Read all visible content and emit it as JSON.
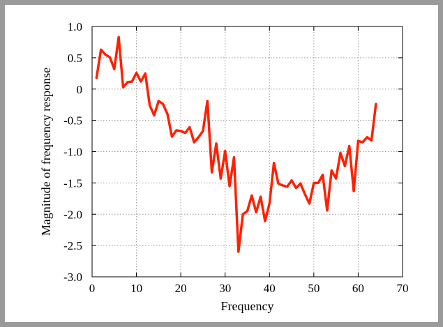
{
  "chart_data": {
    "type": "line",
    "title": "",
    "xlabel": "Frequency",
    "ylabel": "Magnitude of frequency response",
    "xlim": [
      0,
      70
    ],
    "ylim": [
      -3.0,
      1.0
    ],
    "xticks": [
      0,
      10,
      20,
      30,
      40,
      50,
      60,
      70
    ],
    "xtick_labels": [
      "0",
      "10",
      "20",
      "30",
      "40",
      "50",
      "60",
      "70"
    ],
    "yticks": [
      1.0,
      0.5,
      0,
      -0.5,
      -1.0,
      -1.5,
      -2.0,
      -2.5,
      -3.0
    ],
    "ytick_labels": [
      "1.0",
      "0.5",
      "0",
      "-0.5",
      "-1.0",
      "-1.5",
      "-2.0",
      "-2.5",
      "-3.0"
    ],
    "grid": true,
    "legend": "none",
    "line_color": "#ff2000",
    "series": [
      {
        "x": [
          1,
          2,
          3,
          4,
          5,
          6,
          7,
          8,
          9,
          10,
          11,
          12,
          13,
          14,
          15,
          16,
          17,
          18,
          19,
          20,
          21,
          22,
          23,
          24,
          25,
          26,
          27,
          28,
          29,
          30,
          31,
          32,
          33,
          34,
          35,
          36,
          37,
          38,
          39,
          40,
          41,
          42,
          43,
          44,
          45,
          46,
          47,
          48,
          49,
          50,
          51,
          52,
          53,
          54,
          55,
          56,
          57,
          58,
          59,
          60,
          61,
          62,
          63,
          64
        ],
        "values": [
          0.18,
          0.63,
          0.55,
          0.51,
          0.32,
          0.83,
          0.03,
          0.11,
          0.12,
          0.26,
          0.12,
          0.25,
          -0.26,
          -0.42,
          -0.19,
          -0.24,
          -0.4,
          -0.76,
          -0.66,
          -0.67,
          -0.7,
          -0.61,
          -0.85,
          -0.77,
          -0.67,
          -0.19,
          -1.33,
          -0.87,
          -1.43,
          -0.99,
          -1.55,
          -1.09,
          -2.6,
          -2.0,
          -1.95,
          -1.7,
          -1.97,
          -1.72,
          -2.11,
          -1.83,
          -1.18,
          -1.51,
          -1.54,
          -1.56,
          -1.46,
          -1.58,
          -1.51,
          -1.68,
          -1.83,
          -1.5,
          -1.5,
          -1.37,
          -1.94,
          -1.3,
          -1.43,
          -1.02,
          -1.23,
          -0.91,
          -1.63,
          -0.83,
          -0.85,
          -0.77,
          -0.82,
          -0.24
        ]
      }
    ]
  }
}
